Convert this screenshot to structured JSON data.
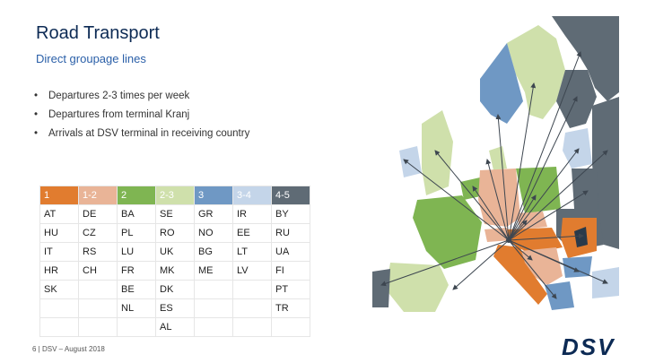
{
  "title": "Road Transport",
  "subtitle": "Direct groupage lines",
  "bullets": [
    "Departures 2-3 times per week",
    "Departures from terminal Kranj",
    "Arrivals at DSV terminal in receiving country"
  ],
  "bullet_symbol": "•",
  "table": {
    "headers": [
      {
        "label": "1",
        "color": "#e17c2f"
      },
      {
        "label": "1-2",
        "color": "#e9b497"
      },
      {
        "label": "2",
        "color": "#7fb552"
      },
      {
        "label": "2-3",
        "color": "#cfe0ab"
      },
      {
        "label": "3",
        "color": "#6f98c4"
      },
      {
        "label": "3-4",
        "color": "#c4d5e9"
      },
      {
        "label": "4-5",
        "color": "#5f6b75"
      }
    ],
    "rows": [
      [
        "AT",
        "DE",
        "BA",
        "SE",
        "GR",
        "IR",
        "BY"
      ],
      [
        "HU",
        "CZ",
        "PL",
        "RO",
        "NO",
        "EE",
        "RU"
      ],
      [
        "IT",
        "RS",
        "LU",
        "UK",
        "BG",
        "LT",
        "UA"
      ],
      [
        "HR",
        "CH",
        "FR",
        "MK",
        "ME",
        "LV",
        "FI"
      ],
      [
        "SK",
        "",
        "BE",
        "DK",
        "",
        "",
        "PT"
      ],
      [
        "",
        "",
        "NL",
        "ES",
        "",
        "",
        "TR"
      ],
      [
        "",
        "",
        "",
        "AL",
        "",
        "",
        ""
      ]
    ]
  },
  "footer": "6 | DSV – August 2018",
  "logo_text": "DSV",
  "colors": {
    "brand": "#0c2a54",
    "accent": "#2a5fa8",
    "arrow": "#3d4650"
  }
}
